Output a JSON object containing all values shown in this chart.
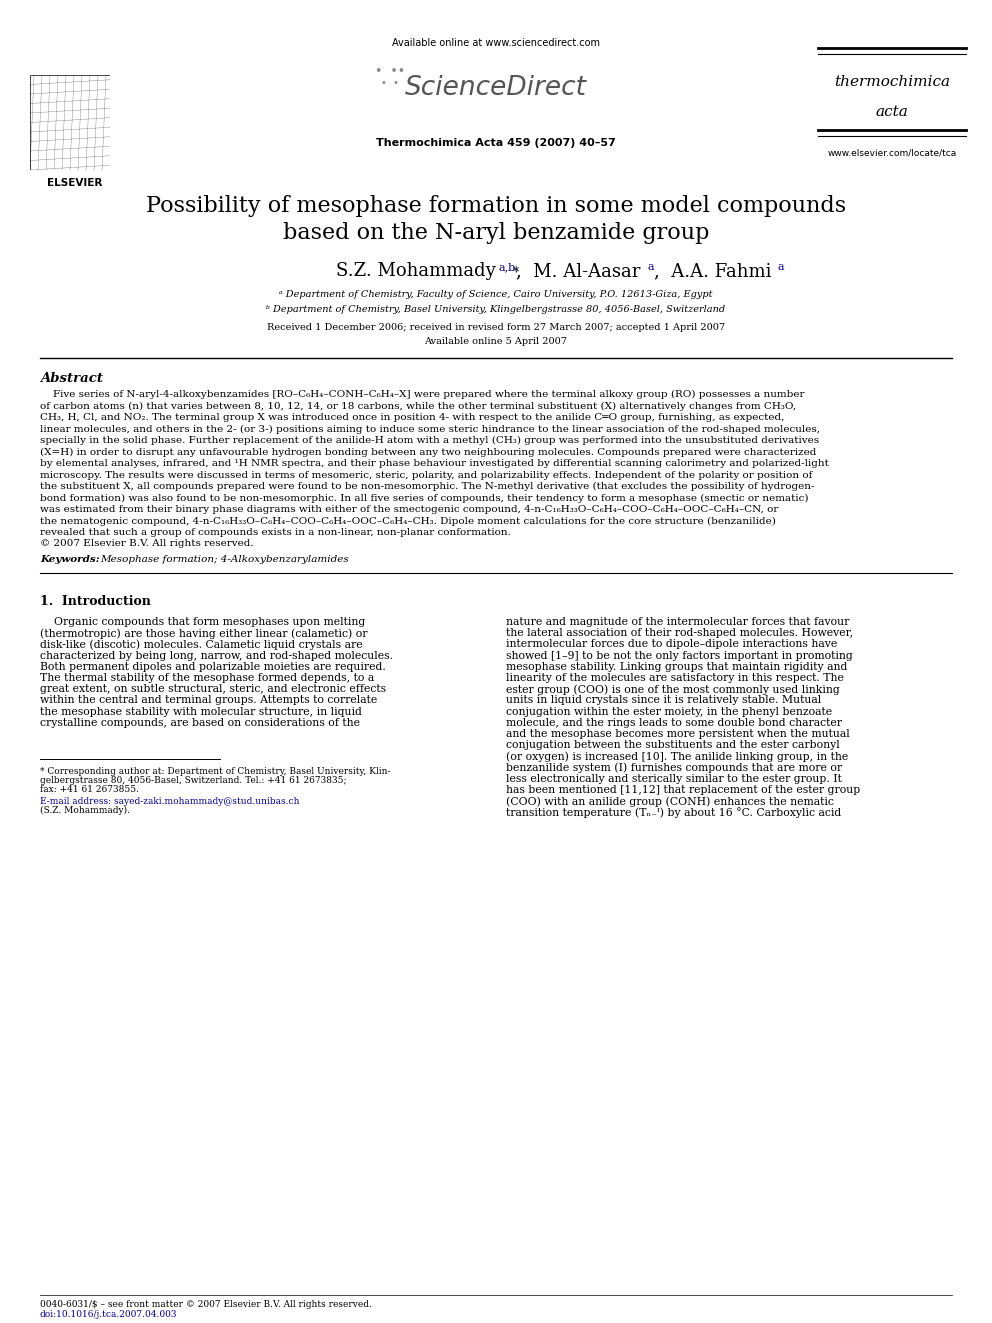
{
  "page_title_line1": "Possibility of mesophase formation in some model compounds",
  "page_title_line2": "based on the N-aryl benzamide group",
  "journal_name": "Thermochimica Acta 459 (2007) 40–57",
  "available_online": "Available online at www.sciencedirect.com",
  "sciencedirect_text": "ScienceDirect",
  "thermochimica": "thermochimica",
  "acta": "acta",
  "elsevier_url": "www.elsevier.com/locate/tca",
  "elsevier_label": "ELSEVIER",
  "affil_a": "ᵃ Department of Chemistry, Faculty of Science, Cairo University, P.O. 12613-Giza, Egypt",
  "affil_b": "ᵇ Department of Chemistry, Basel University, Klingelbergstrasse 80, 4056-Basel, Switzerland",
  "received": "Received 1 December 2006; received in revised form 27 March 2007; accepted 1 April 2007",
  "available_online2": "Available online 5 April 2007",
  "abstract_title": "Abstract",
  "keywords_label": "Keywords:",
  "keywords": "Mesophase formation; 4-Alkoxybenzarylamides",
  "section1_title": "1.  Introduction",
  "footer_left": "0040-6031/$ – see front matter © 2007 Elsevier B.V. All rights reserved.",
  "footer_doi": "doi:10.1016/j.tca.2007.04.003",
  "bg_color": "#ffffff",
  "text_color": "#000000",
  "blue_color": "#000099"
}
